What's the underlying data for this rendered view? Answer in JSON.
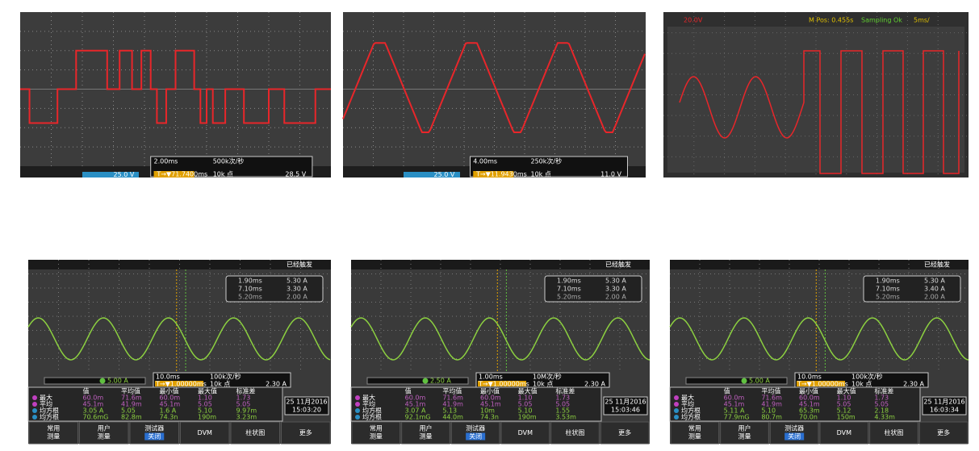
{
  "top_screens": [
    {
      "timebase": "2.00ms",
      "rate": "500k次/秒",
      "ch_scale": "25.0 V",
      "trigger": "T→▼71.7400ms",
      "points": "10k 点",
      "trig_level": "28.5 V"
    },
    {
      "timebase": "4.00ms",
      "rate": "250k次/秒",
      "ch_scale": "25.0 V",
      "trigger": "T→▼11.9430ms",
      "points": "10k 点",
      "trig_level": "11.0 V"
    }
  ],
  "scope_screen": {
    "volts": "20.0V",
    "mpos": "M Pos: 0.455s",
    "status": "Sampling Ok",
    "timebase": "5ms/"
  },
  "bottom_screens": [
    {
      "status": "已经触发",
      "cursors": [
        [
          "1.90ms",
          "5.30 A"
        ],
        [
          "7.10ms",
          "3.30 A"
        ],
        [
          "5.20ms",
          "2.00 A"
        ]
      ],
      "ch_scale": "5.00 A",
      "timebase": "10.0ms",
      "rate": "100k次/秒",
      "trigger": "T→▼1.00000ms",
      "points": "10k 点",
      "trig_level": "2.30 A",
      "table_header": [
        "值",
        "平均值",
        "最小值",
        "最大值",
        "标准差"
      ],
      "table_rows": [
        [
          "最大",
          "60.0m",
          "71.6m",
          "60.0m",
          "1.10",
          "1.73"
        ],
        [
          "平均",
          "45.1m",
          "41.9m",
          "45.1m",
          "5.05",
          "5.05"
        ],
        [
          "均方根",
          "3.05 A",
          "5.05",
          "1.6 A",
          "5.10",
          "9.97m"
        ],
        [
          "均方根",
          "70.6mG",
          "82.8m",
          "74.3n",
          "190m",
          "3.23m"
        ]
      ],
      "date": "25 11月2016",
      "time": "15:03:20",
      "buttons": [
        [
          "常用",
          "测量"
        ],
        [
          "用户",
          "测量"
        ],
        [
          "测试器",
          "关闭"
        ],
        [
          "DVM"
        ],
        [
          "柱状图"
        ],
        [
          "更多"
        ]
      ]
    },
    {
      "status": "已经触发",
      "cursors": [
        [
          "1.90ms",
          "5.30 A"
        ],
        [
          "7.10ms",
          "3.30 A"
        ],
        [
          "5.20ms",
          "2.00 A"
        ]
      ],
      "ch_scale": "2.50 A",
      "timebase": "1.00ms",
      "rate": "10M次/秒",
      "trigger": "T→▼1.00000ms",
      "points": "10k 点",
      "trig_level": "2.30 A",
      "table_header": [
        "值",
        "平均值",
        "最小值",
        "最大值",
        "标准差"
      ],
      "table_rows": [
        [
          "最大",
          "60.0m",
          "71.6m",
          "60.0m",
          "1.10",
          "1.73"
        ],
        [
          "平均",
          "45.1m",
          "41.9m",
          "45.1m",
          "5.05",
          "5.05"
        ],
        [
          "均方根",
          "3.07 A",
          "5.13",
          "10m",
          "5.10",
          "1.55"
        ],
        [
          "均方根",
          "92.1mG",
          "44.0m",
          "74.3n",
          "190m",
          "3.53m"
        ]
      ],
      "date": "25 11月2016",
      "time": "15:03:46",
      "buttons": [
        [
          "常用",
          "测量"
        ],
        [
          "用户",
          "测量"
        ],
        [
          "测试器",
          "关闭"
        ],
        [
          "DVM"
        ],
        [
          "柱状图"
        ],
        [
          "更多"
        ]
      ]
    },
    {
      "status": "已经触发",
      "cursors": [
        [
          "1.90ms",
          "5.30 A"
        ],
        [
          "7.10ms",
          "3.40 A"
        ],
        [
          "5.20ms",
          "2.00 A"
        ]
      ],
      "ch_scale": "5.00 A",
      "timebase": "10.0ms",
      "rate": "100k次/秒",
      "trigger": "T→▼1.00000ms",
      "points": "10k 点",
      "trig_level": "2.30 A",
      "table_header": [
        "值",
        "平均值",
        "最小值",
        "最大值",
        "标准差"
      ],
      "table_rows": [
        [
          "最大",
          "60.0m",
          "71.6m",
          "60.0m",
          "1.10",
          "1.73"
        ],
        [
          "平均",
          "45.1m",
          "41.9m",
          "45.1m",
          "5.05",
          "5.05"
        ],
        [
          "均方根",
          "5.11 A",
          "5.10",
          "65.3m",
          "5.12",
          "2.18"
        ],
        [
          "均方根",
          "77.9mG",
          "80.7m",
          "70.0n",
          "150m",
          "4.33m"
        ]
      ],
      "date": "25 11月2016",
      "time": "16:03:34",
      "buttons": [
        [
          "常用",
          "测量"
        ],
        [
          "用户",
          "测量"
        ],
        [
          "测试器",
          "关闭"
        ],
        [
          "DVM"
        ],
        [
          "柱状图"
        ],
        [
          "更多"
        ]
      ]
    }
  ]
}
